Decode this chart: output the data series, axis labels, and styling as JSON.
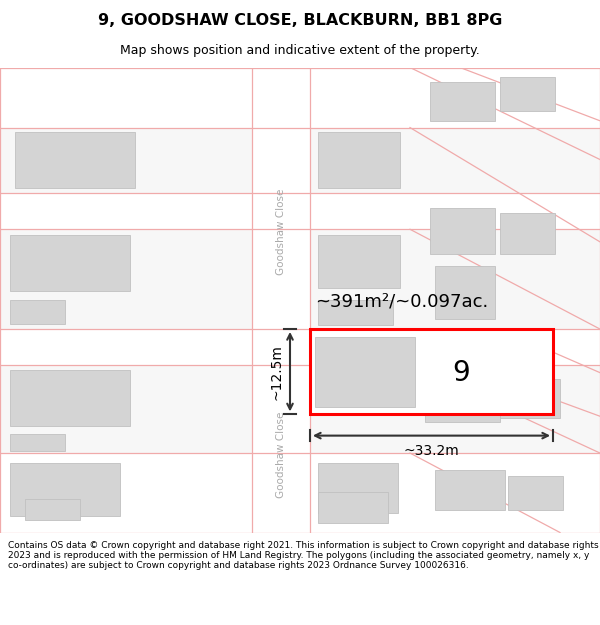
{
  "title": "9, GOODSHAW CLOSE, BLACKBURN, BB1 8PG",
  "subtitle": "Map shows position and indicative extent of the property.",
  "footer": "Contains OS data © Crown copyright and database right 2021. This information is subject to Crown copyright and database rights 2023 and is reproduced with the permission of HM Land Registry. The polygons (including the associated geometry, namely x, y co-ordinates) are subject to Crown copyright and database rights 2023 Ordnance Survey 100026316.",
  "road_color": "#f0aaaa",
  "building_color": "#d4d4d4",
  "building_edge": "#c0c0c0",
  "plot_fill": "#ffffff",
  "plot_edge": "#ff0000",
  "road_label": "Goodshaw Close",
  "area_label": "~391m²/~0.097ac.",
  "width_label": "~33.2m",
  "height_label": "~12.5m",
  "plot_number": "9",
  "road_text_color": "#aaaaaa"
}
